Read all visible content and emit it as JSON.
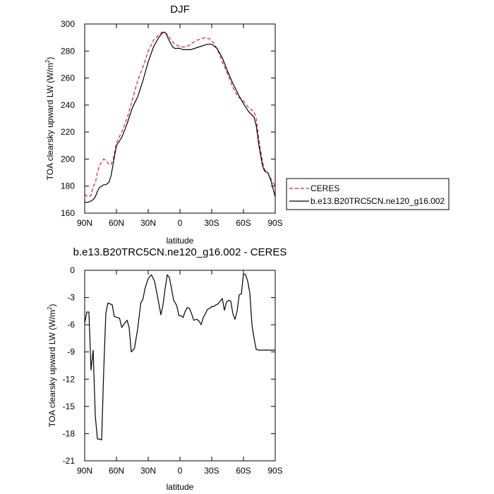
{
  "colors": {
    "obs": "#e31a1c",
    "model": "#000000"
  },
  "chart_data": [
    {
      "type": "line",
      "title": "DJF",
      "xlabel": "latitude",
      "ylabel": "TOA clearsky upward LW (W/m",
      "ylabel_sup": "2",
      "ylabel_end": ")",
      "xlim": [
        -90,
        90
      ],
      "ylim": [
        160,
        300
      ],
      "xticks": [
        {
          "value": -90,
          "label": "90N"
        },
        {
          "value": -60,
          "label": "60N"
        },
        {
          "value": -30,
          "label": "30N"
        },
        {
          "value": 0,
          "label": "0"
        },
        {
          "value": 30,
          "label": "30S"
        },
        {
          "value": 60,
          "label": "60S"
        },
        {
          "value": 90,
          "label": "90S"
        }
      ],
      "yticks": [
        {
          "value": 160,
          "label": "160"
        },
        {
          "value": 180,
          "label": "180"
        },
        {
          "value": 200,
          "label": "200"
        },
        {
          "value": 220,
          "label": "220"
        },
        {
          "value": 240,
          "label": "240"
        },
        {
          "value": 260,
          "label": "260"
        },
        {
          "value": 280,
          "label": "280"
        },
        {
          "value": 300,
          "label": "300"
        }
      ],
      "legend": {
        "placement": "right"
      },
      "series": [
        {
          "name": "CERES",
          "style": "dashed",
          "color": "#e31a1c",
          "x": [
            -90,
            -87,
            -84,
            -82,
            -80,
            -78,
            -76,
            -74,
            -72,
            -70,
            -67,
            -65,
            -63,
            -60,
            -55,
            -50,
            -45,
            -40,
            -35,
            -30,
            -25,
            -20,
            -17,
            -15,
            -13,
            -11,
            -8,
            -5,
            -2,
            0,
            2,
            5,
            8,
            12,
            16,
            20,
            24,
            28,
            32,
            36,
            40,
            45,
            50,
            55,
            60,
            65,
            70,
            72,
            75,
            78,
            80,
            83,
            86,
            90
          ],
          "y": [
            174,
            172,
            173,
            180,
            182,
            190,
            195,
            198,
            200,
            199,
            196,
            196,
            200,
            212,
            220,
            230,
            244,
            258,
            268,
            280,
            288,
            292,
            294,
            294,
            293,
            291,
            288,
            285,
            284,
            283,
            283,
            283,
            284,
            286,
            288,
            289,
            290,
            289,
            286,
            280,
            272,
            263,
            253,
            246,
            243,
            238,
            235,
            230,
            212,
            198,
            192,
            190,
            185,
            180
          ]
        },
        {
          "name": "b.e13.B20TRC5CN.ne120_g16.002",
          "style": "solid",
          "color": "#000000",
          "x": [
            -90,
            -87,
            -84,
            -82,
            -80,
            -78,
            -76,
            -74,
            -72,
            -70,
            -67,
            -65,
            -63,
            -60,
            -55,
            -50,
            -45,
            -40,
            -35,
            -30,
            -25,
            -20,
            -17,
            -15,
            -13,
            -11,
            -9,
            -7,
            -5,
            -3,
            0,
            3,
            6,
            10,
            14,
            18,
            22,
            26,
            30,
            35,
            40,
            45,
            50,
            55,
            60,
            65,
            70,
            72,
            75,
            78,
            80,
            83,
            86,
            90
          ],
          "y": [
            168,
            168,
            169,
            170,
            172,
            176,
            179,
            180,
            181,
            181,
            183,
            188,
            197,
            210,
            216,
            226,
            238,
            246,
            258,
            272,
            283,
            290,
            293,
            294,
            293,
            289,
            286,
            283,
            282,
            282,
            282,
            281,
            281,
            281,
            282,
            283,
            284,
            285,
            285,
            282,
            275,
            265,
            256,
            248,
            241,
            235,
            231,
            225,
            208,
            195,
            191,
            190,
            184,
            172
          ]
        }
      ]
    },
    {
      "type": "line",
      "title": "b.e13.B20TRC5CN.ne120_g16.002 - CERES",
      "xlabel": "latitude",
      "ylabel": "TOA clearsky upward LW (W/m",
      "ylabel_sup": "2",
      "ylabel_end": ")",
      "xlim": [
        -90,
        90
      ],
      "ylim": [
        -21,
        0
      ],
      "xticks": [
        {
          "value": -90,
          "label": "90N"
        },
        {
          "value": -60,
          "label": "60N"
        },
        {
          "value": -30,
          "label": "30N"
        },
        {
          "value": 0,
          "label": "0"
        },
        {
          "value": 30,
          "label": "30S"
        },
        {
          "value": 60,
          "label": "60S"
        },
        {
          "value": 90,
          "label": "90S"
        }
      ],
      "yticks": [
        {
          "value": 0,
          "label": "0"
        },
        {
          "value": -3,
          "label": "-3"
        },
        {
          "value": -6,
          "label": "-6"
        },
        {
          "value": -9,
          "label": "-9"
        },
        {
          "value": -12,
          "label": "-12"
        },
        {
          "value": -15,
          "label": "-15"
        },
        {
          "value": -18,
          "label": "-18"
        },
        {
          "value": -21,
          "label": "-21"
        }
      ],
      "series": [
        {
          "style": "solid",
          "color": "#000000",
          "x": [
            -90,
            -88,
            -86,
            -84,
            -82,
            -80,
            -78,
            -76,
            -74,
            -72,
            -70,
            -68,
            -66,
            -64,
            -62,
            -59,
            -57,
            -55,
            -52,
            -50,
            -48,
            -46,
            -43,
            -40,
            -37,
            -35,
            -33,
            -30,
            -27,
            -24,
            -21,
            -18,
            -16,
            -14,
            -12,
            -10,
            -8,
            -6,
            -3,
            -1,
            1,
            3,
            5,
            7,
            9,
            11,
            13,
            16,
            18,
            20,
            22,
            24,
            26,
            28,
            30,
            32,
            34,
            36,
            38,
            40,
            42,
            44,
            46,
            48,
            50,
            52,
            54,
            56,
            58,
            60,
            62,
            64,
            66,
            68,
            70,
            72,
            74,
            76,
            78,
            80,
            82,
            84,
            86,
            88,
            90
          ],
          "y": [
            -5.8,
            -4.6,
            -4.6,
            -11.0,
            -8.8,
            -16.0,
            -18.6,
            -18.6,
            -18.7,
            -11.0,
            -4.7,
            -3.6,
            -3.7,
            -3.8,
            -5.1,
            -5.2,
            -5.3,
            -6.3,
            -5.8,
            -5.5,
            -6.3,
            -9.0,
            -8.6,
            -6.5,
            -3.6,
            -3.2,
            -2.0,
            -0.9,
            -0.5,
            -1.2,
            -3.0,
            -4.9,
            -3.8,
            -2.0,
            -0.5,
            -0.8,
            -2.0,
            -3.3,
            -3.9,
            -5.0,
            -5.0,
            -5.2,
            -4.5,
            -4.1,
            -4.2,
            -4.8,
            -5.5,
            -5.4,
            -5.6,
            -6.0,
            -5.2,
            -4.8,
            -4.3,
            -4.2,
            -4.0,
            -4.0,
            -3.8,
            -3.7,
            -3.4,
            -3.1,
            -4.4,
            -3.5,
            -3.3,
            -3.4,
            -4.8,
            -5.4,
            -4.5,
            -2.7,
            -2.6,
            -0.4,
            -0.5,
            -1.2,
            -2.5,
            -6.0,
            -7.5,
            -8.7,
            -8.8,
            -8.8,
            -8.8,
            -8.8,
            -8.8,
            -8.8,
            -8.8,
            -8.8,
            -8.8
          ]
        }
      ]
    }
  ]
}
